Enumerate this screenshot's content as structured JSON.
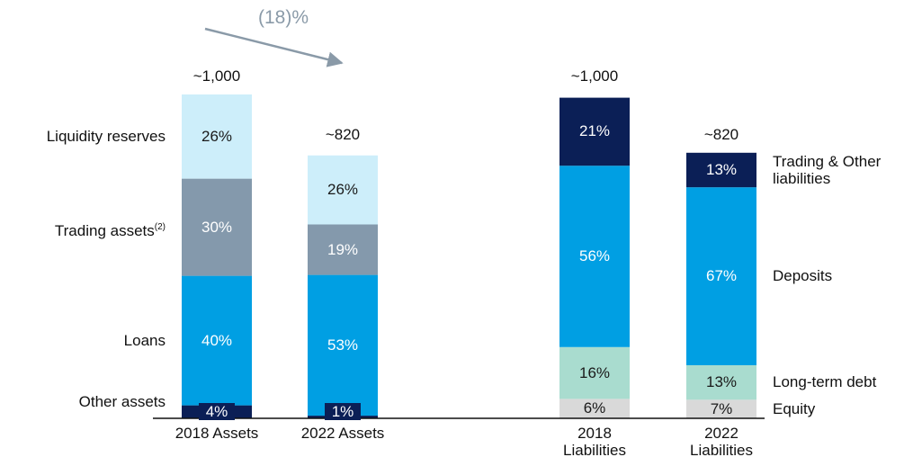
{
  "chart_data": [
    {
      "type": "bar",
      "stacked": true,
      "legend_position": "left",
      "annotation": "(18)%",
      "categories": [
        "2018 Assets",
        "2022 Assets"
      ],
      "values": [
        1000,
        820
      ],
      "value_labels": [
        "~1,000",
        "~820"
      ],
      "series": [
        {
          "name": "Other assets",
          "color": "#0b1f56",
          "label_color": "#ffffff",
          "values": [
            4,
            1
          ],
          "value_labels": [
            "4%",
            "1%"
          ]
        },
        {
          "name": "Loans",
          "color": "#009fe3",
          "label_color": "#ffffff",
          "values": [
            40,
            53
          ],
          "value_labels": [
            "40%",
            "53%"
          ]
        },
        {
          "name": "Trading assets",
          "name_note": "(2)",
          "color": "#8499ac",
          "label_color": "#ffffff",
          "values": [
            30,
            19
          ],
          "value_labels": [
            "30%",
            "19%"
          ]
        },
        {
          "name": "Liquidity reserves",
          "color": "#cdeefa",
          "label_color": "#1a1a1a",
          "values": [
            26,
            26
          ],
          "value_labels": [
            "26%",
            "26%"
          ]
        }
      ]
    },
    {
      "type": "bar",
      "stacked": true,
      "legend_position": "right",
      "categories": [
        "2018 Liabilities",
        "2022 Liabilities"
      ],
      "values": [
        1000,
        820
      ],
      "value_labels": [
        "~1,000",
        "~820"
      ],
      "series": [
        {
          "name": "Equity",
          "color": "#d9d9d9",
          "label_color": "#1a1a1a",
          "values": [
            6,
            7
          ],
          "value_labels": [
            "6%",
            "7%"
          ]
        },
        {
          "name": "Long-term debt",
          "color": "#a9dccf",
          "label_color": "#1a1a1a",
          "values": [
            16,
            13
          ],
          "value_labels": [
            "16%",
            "13%"
          ]
        },
        {
          "name": "Deposits",
          "color": "#009fe3",
          "label_color": "#ffffff",
          "values": [
            56,
            67
          ],
          "value_labels": [
            "56%",
            "67%"
          ]
        },
        {
          "name": "Trading & Other liabilities",
          "color": "#0b1f56",
          "label_color": "#ffffff",
          "values": [
            21,
            13
          ],
          "value_labels": [
            "21%",
            "13%"
          ]
        }
      ]
    }
  ]
}
